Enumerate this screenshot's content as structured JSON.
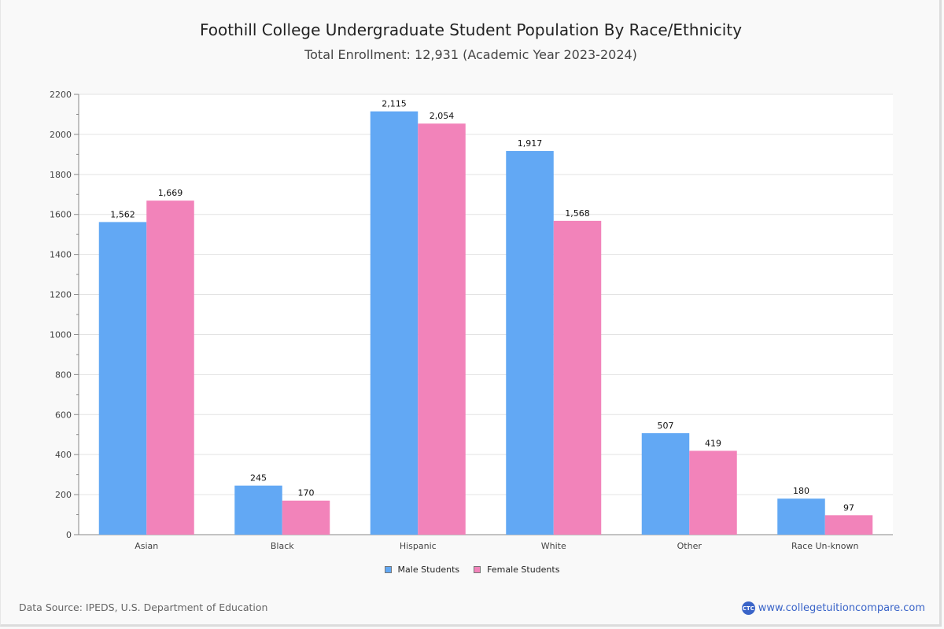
{
  "chart_data": {
    "type": "bar",
    "title": "Foothill College Undergraduate Student Population By Race/Ethnicity",
    "subtitle": "Total Enrollment: 12,931 (Academic Year 2023-2024)",
    "xlabel": "",
    "ylabel": "",
    "categories": [
      "Asian",
      "Black",
      "Hispanic",
      "White",
      "Other",
      "Race Un-known"
    ],
    "series": [
      {
        "name": "Male Students",
        "color": "#62a8f4",
        "values": [
          1562,
          245,
          2115,
          1917,
          507,
          180
        ],
        "labels": [
          "1,562",
          "245",
          "2,115",
          "1,917",
          "507",
          "180"
        ]
      },
      {
        "name": "Female Students",
        "color": "#f283ba",
        "values": [
          1669,
          170,
          2054,
          1568,
          419,
          97
        ],
        "labels": [
          "1,669",
          "170",
          "2,054",
          "1,568",
          "419",
          "97"
        ]
      }
    ],
    "ylim": [
      0,
      2200
    ],
    "yticks": [
      0,
      200,
      400,
      600,
      800,
      1000,
      1200,
      1400,
      1600,
      1800,
      2000,
      2200
    ],
    "grid": true,
    "legend_position": "bottom-center"
  },
  "footer": {
    "source": "Data Source: IPEDS, U.S. Department of Education",
    "brand_logo": "CTC",
    "brand_url": "www.collegetuitioncompare.com"
  }
}
